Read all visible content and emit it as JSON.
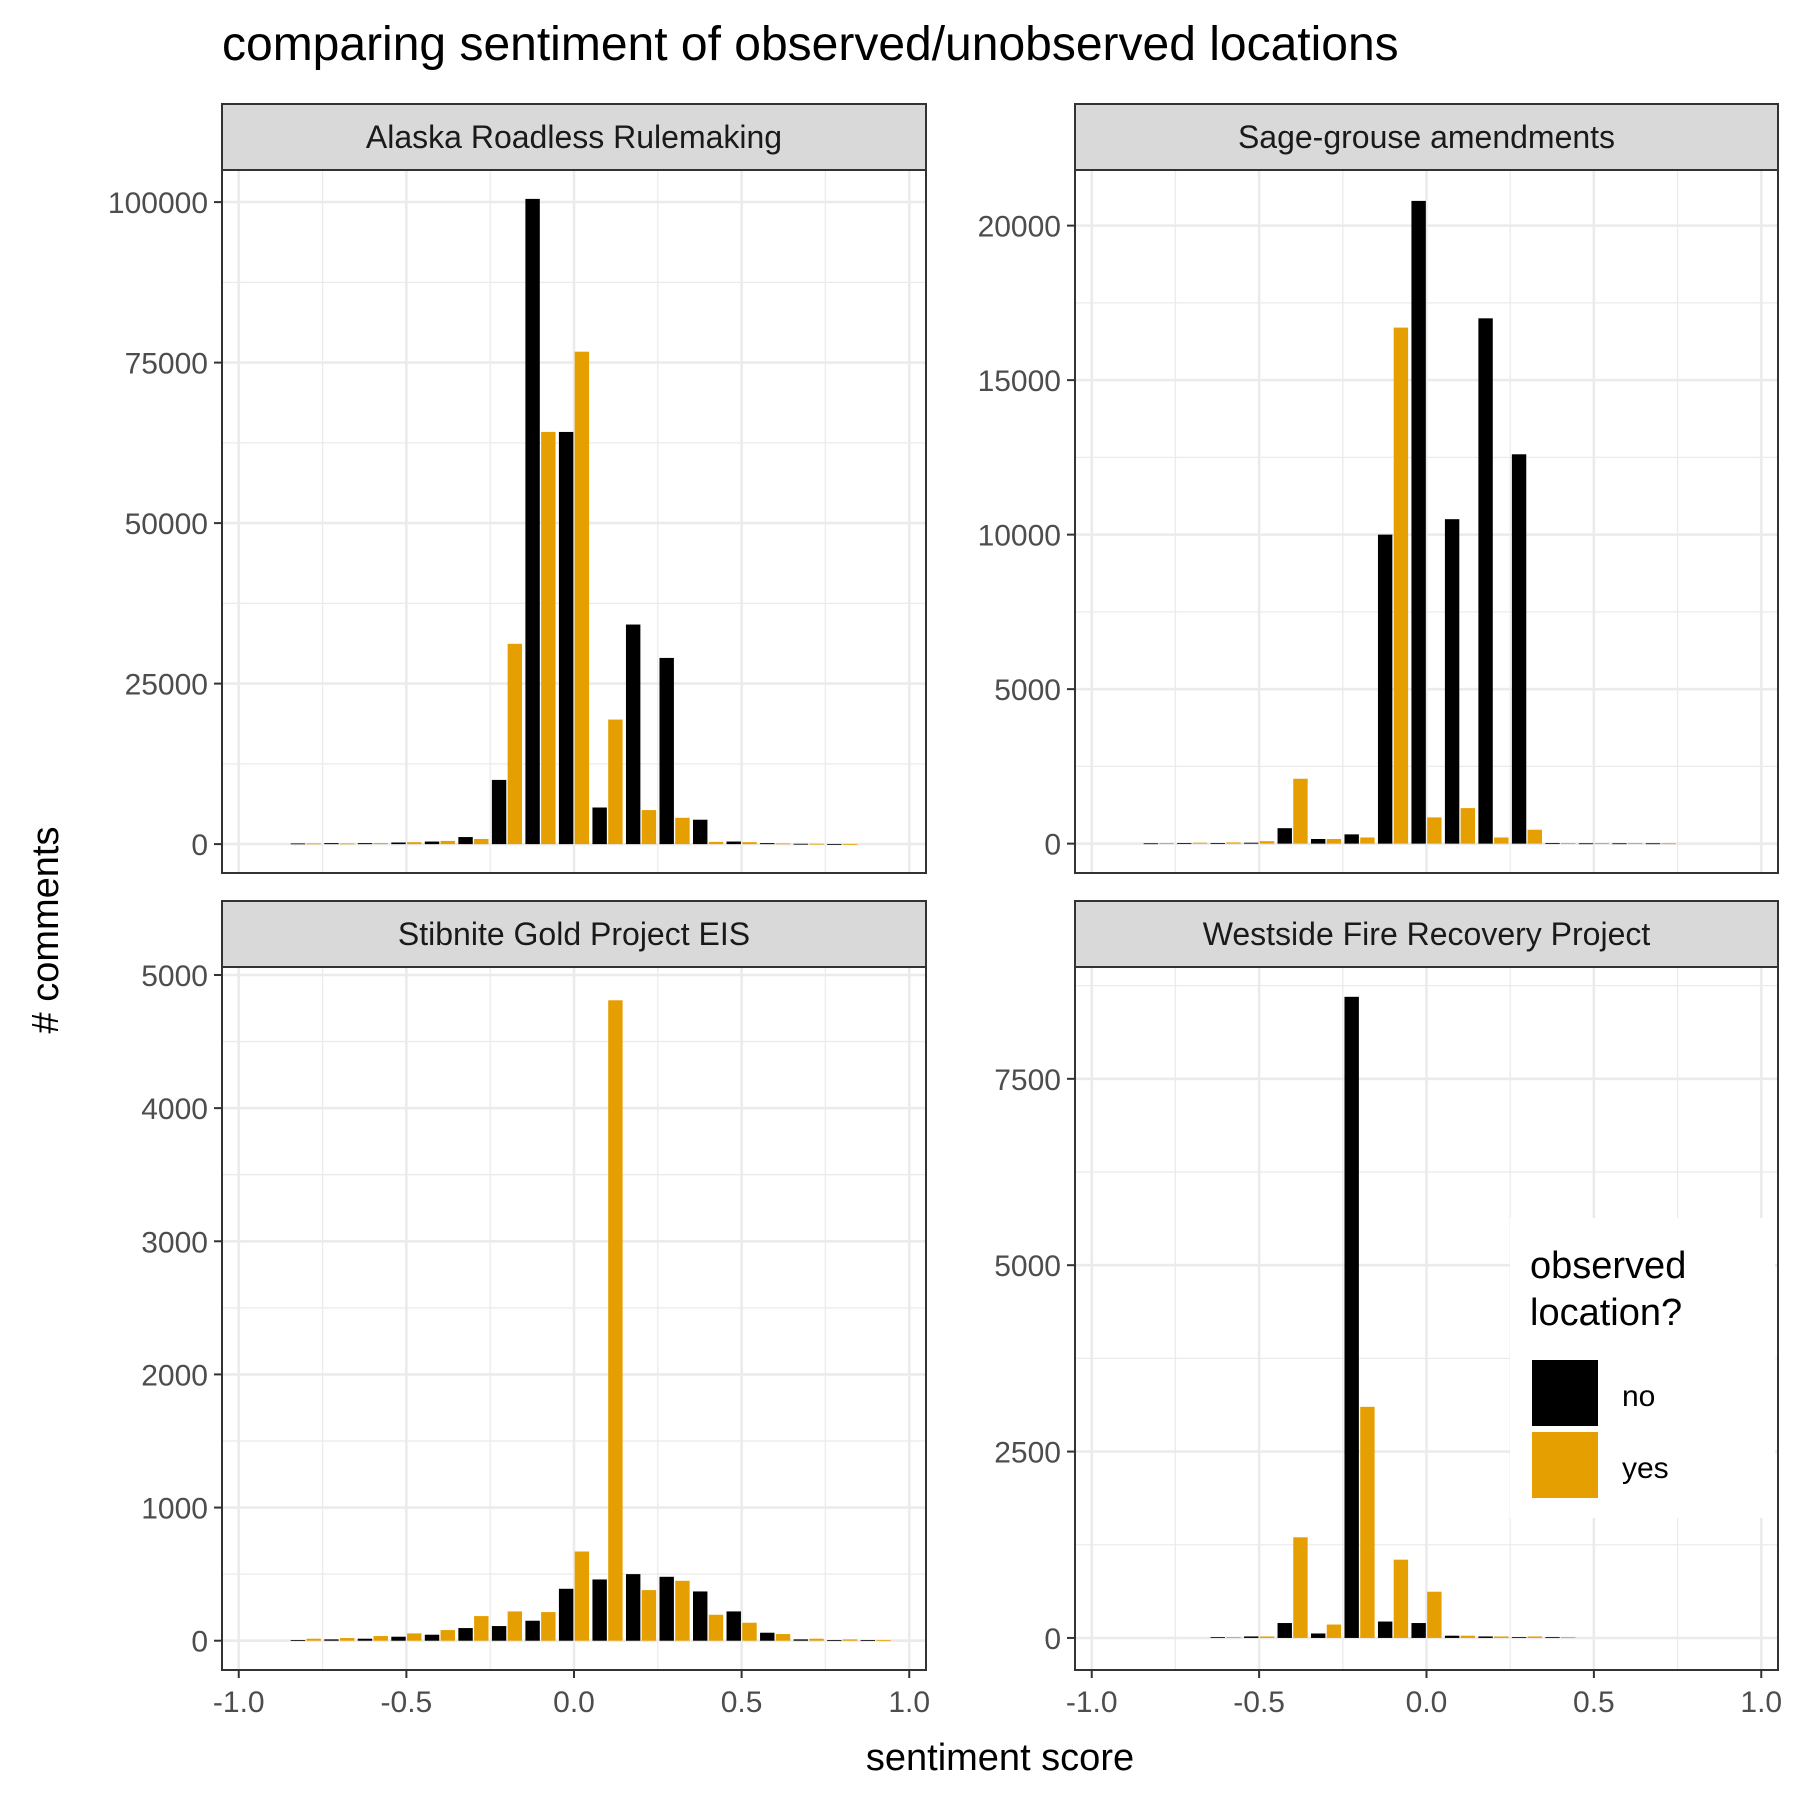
{
  "title": "comparing sentiment of observed/unobserved locations",
  "xlabel": "sentiment score",
  "ylabel": "# comments",
  "legend": {
    "title_line1": "observed",
    "title_line2": "location?",
    "items": [
      {
        "label": "no",
        "color": "#000000"
      },
      {
        "label": "yes",
        "color": "#E69F00"
      }
    ]
  },
  "colors": {
    "no": "#000000",
    "yes": "#E69F00",
    "strip": "#d9d9d9",
    "grid": "#ebebeb"
  },
  "chart_data": [
    {
      "type": "bar",
      "panel": "Alaska Roadless Rulemaking",
      "xlim": [
        -1.05,
        1.05
      ],
      "ylim": [
        -4500,
        105000
      ],
      "xticks": [
        -1.0,
        -0.5,
        0.0,
        0.5,
        1.0
      ],
      "xtick_labels": [
        "-1.0",
        "-0.5",
        "0.0",
        "0.5",
        "1.0"
      ],
      "yticks": [
        0,
        25000,
        50000,
        75000,
        100000
      ],
      "ytick_labels": [
        "0",
        "25000",
        "50000",
        "75000",
        "100000"
      ],
      "bin_width": 0.1,
      "series": [
        {
          "name": "no",
          "x": [
            -0.8,
            -0.7,
            -0.6,
            -0.5,
            -0.4,
            -0.3,
            -0.2,
            -0.1,
            0.0,
            0.1,
            0.2,
            0.3,
            0.4,
            0.5,
            0.6,
            0.7,
            0.8
          ],
          "values": [
            100,
            150,
            150,
            250,
            400,
            1100,
            10000,
            100500,
            64200,
            5700,
            34200,
            29000,
            3800,
            400,
            150,
            50,
            20
          ]
        },
        {
          "name": "yes",
          "x": [
            -0.8,
            -0.7,
            -0.6,
            -0.5,
            -0.4,
            -0.3,
            -0.2,
            -0.1,
            0.0,
            0.1,
            0.2,
            0.3,
            0.4,
            0.5,
            0.6,
            0.7,
            0.8
          ],
          "values": [
            100,
            100,
            150,
            300,
            500,
            800,
            31200,
            64200,
            76700,
            19400,
            5300,
            4100,
            350,
            300,
            100,
            50,
            20
          ]
        }
      ]
    },
    {
      "type": "bar",
      "panel": "Sage-grouse amendments",
      "xlim": [
        -1.05,
        1.05
      ],
      "ylim": [
        -950,
        21800
      ],
      "xticks": [
        -1.0,
        -0.5,
        0.0,
        0.5,
        1.0
      ],
      "xtick_labels": [
        "-1.0",
        "-0.5",
        "0.0",
        "0.5",
        "1.0"
      ],
      "yticks": [
        0,
        5000,
        10000,
        15000,
        20000
      ],
      "ytick_labels": [
        "0",
        "5000",
        "10000",
        "15000",
        "20000"
      ],
      "bin_width": 0.1,
      "series": [
        {
          "name": "no",
          "x": [
            -0.8,
            -0.7,
            -0.6,
            -0.5,
            -0.4,
            -0.3,
            -0.2,
            -0.1,
            0.0,
            0.1,
            0.2,
            0.3,
            0.4,
            0.5,
            0.6,
            0.7
          ],
          "values": [
            10,
            20,
            20,
            30,
            500,
            150,
            300,
            10000,
            20800,
            10500,
            17000,
            12600,
            20,
            10,
            10,
            10
          ]
        },
        {
          "name": "yes",
          "x": [
            -0.8,
            -0.7,
            -0.6,
            -0.5,
            -0.4,
            -0.3,
            -0.2,
            -0.1,
            0.0,
            0.1,
            0.2,
            0.3,
            0.4,
            0.5,
            0.6,
            0.7
          ],
          "values": [
            20,
            30,
            40,
            80,
            2100,
            150,
            200,
            16700,
            850,
            1150,
            200,
            450,
            20,
            20,
            20,
            10
          ]
        }
      ]
    },
    {
      "type": "bar",
      "panel": "Stibnite Gold Project EIS",
      "xlim": [
        -1.05,
        1.05
      ],
      "ylim": [
        -220,
        5060
      ],
      "xticks": [
        -1.0,
        -0.5,
        0.0,
        0.5,
        1.0
      ],
      "xtick_labels": [
        "-1.0",
        "-0.5",
        "0.0",
        "0.5",
        "1.0"
      ],
      "yticks": [
        0,
        1000,
        2000,
        3000,
        4000,
        5000
      ],
      "ytick_labels": [
        "0",
        "1000",
        "2000",
        "3000",
        "4000",
        "5000"
      ],
      "bin_width": 0.1,
      "series": [
        {
          "name": "no",
          "x": [
            -0.8,
            -0.7,
            -0.6,
            -0.5,
            -0.4,
            -0.3,
            -0.2,
            -0.1,
            0.0,
            0.1,
            0.2,
            0.3,
            0.4,
            0.5,
            0.6,
            0.7,
            0.8,
            0.9
          ],
          "values": [
            5,
            10,
            15,
            30,
            45,
            95,
            110,
            150,
            390,
            460,
            500,
            480,
            370,
            220,
            60,
            10,
            5,
            5
          ]
        },
        {
          "name": "yes",
          "x": [
            -0.8,
            -0.7,
            -0.6,
            -0.5,
            -0.4,
            -0.3,
            -0.2,
            -0.1,
            0.0,
            0.1,
            0.2,
            0.3,
            0.4,
            0.5,
            0.6,
            0.7,
            0.8,
            0.9
          ],
          "values": [
            15,
            20,
            35,
            55,
            80,
            185,
            220,
            215,
            670,
            4810,
            380,
            450,
            195,
            135,
            50,
            15,
            10,
            5
          ]
        }
      ]
    },
    {
      "type": "bar",
      "panel": "Westside Fire Recovery Project",
      "xlim": [
        -1.05,
        1.05
      ],
      "ylim": [
        -430,
        9000
      ],
      "xticks": [
        -1.0,
        -0.5,
        0.0,
        0.5,
        1.0
      ],
      "xtick_labels": [
        "-1.0",
        "-0.5",
        "0.0",
        "0.5",
        "1.0"
      ],
      "yticks": [
        0,
        2500,
        5000,
        7500
      ],
      "ytick_labels": [
        "0",
        "2500",
        "5000",
        "7500"
      ],
      "bin_width": 0.1,
      "series": [
        {
          "name": "no",
          "x": [
            -0.6,
            -0.5,
            -0.4,
            -0.3,
            -0.2,
            -0.1,
            0.0,
            0.1,
            0.2,
            0.3,
            0.4
          ],
          "values": [
            10,
            20,
            200,
            60,
            8600,
            220,
            200,
            30,
            20,
            10,
            10
          ]
        },
        {
          "name": "yes",
          "x": [
            -0.6,
            -0.5,
            -0.4,
            -0.3,
            -0.2,
            -0.1,
            0.0,
            0.1,
            0.2,
            0.3,
            0.4
          ],
          "values": [
            10,
            20,
            1350,
            180,
            3100,
            1050,
            620,
            30,
            20,
            20,
            10
          ]
        }
      ]
    }
  ]
}
